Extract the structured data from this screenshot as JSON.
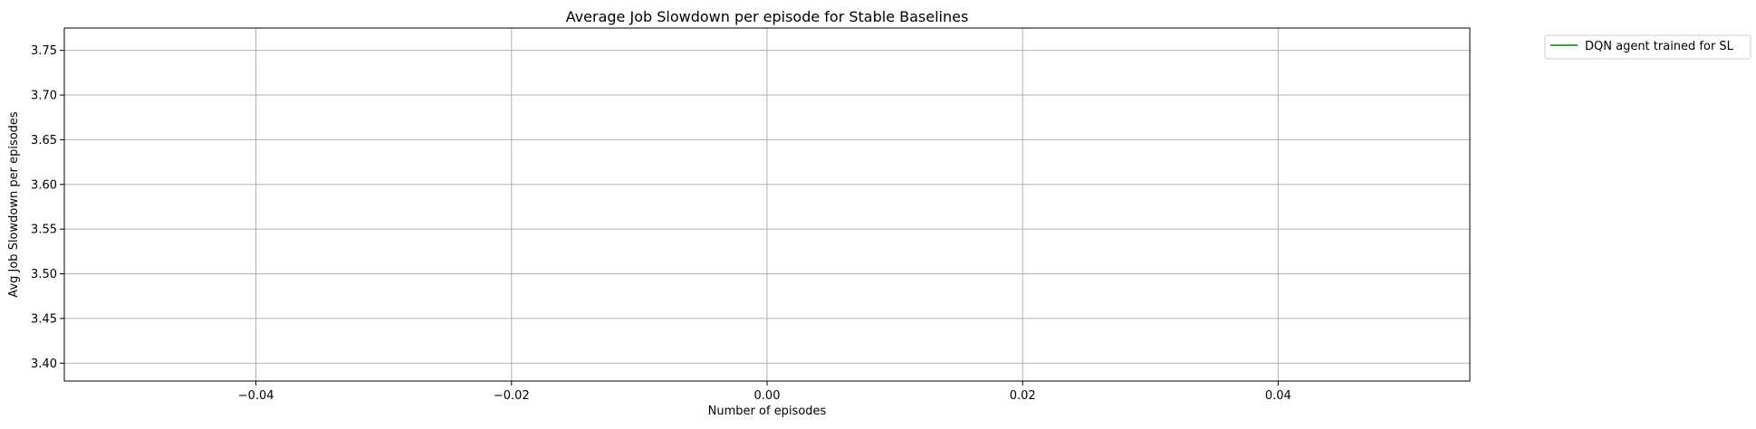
{
  "chart_data": {
    "type": "line",
    "title": "Average Job Slowdown per episode for Stable Baselines",
    "xlabel": "Number of episodes",
    "ylabel": "Avg Job Slowdown per episodes",
    "xlim": [
      -0.055,
      0.055
    ],
    "ylim": [
      3.38,
      3.775
    ],
    "xticks": [
      -0.04,
      -0.02,
      0.0,
      0.02,
      0.04
    ],
    "xtick_labels": [
      "−0.04",
      "−0.02",
      "0.00",
      "0.02",
      "0.04"
    ],
    "yticks": [
      3.4,
      3.45,
      3.5,
      3.55,
      3.6,
      3.65,
      3.7,
      3.75
    ],
    "ytick_labels": [
      "3.40",
      "3.45",
      "3.50",
      "3.55",
      "3.60",
      "3.65",
      "3.70",
      "3.75"
    ],
    "grid": true,
    "legend_position": "outside-top-right",
    "series": [
      {
        "name": "DQN agent trained for SL",
        "color": "#008000",
        "x": [],
        "y": []
      }
    ]
  }
}
